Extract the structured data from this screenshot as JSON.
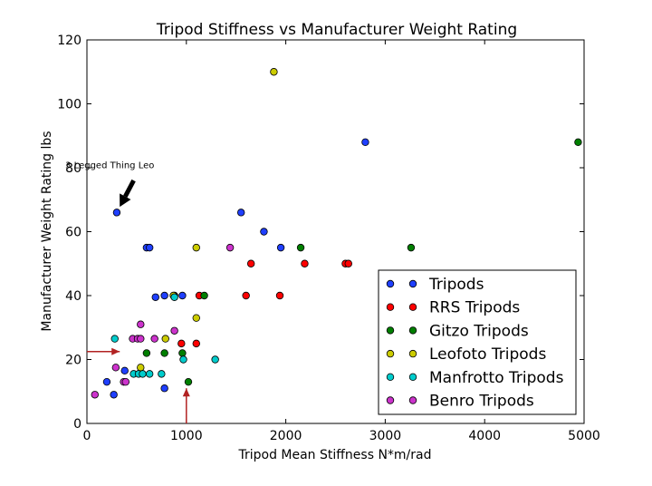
{
  "chart_data": {
    "type": "scatter",
    "title": "Tripod Stiffness vs Manufacturer Weight Rating",
    "xlabel": "Tripod Mean Stiffness N*m/rad",
    "ylabel": "Manufacturer Weight Rating lbs",
    "xlim": [
      0,
      5000
    ],
    "ylim": [
      0,
      120
    ],
    "xticks": [
      0,
      1000,
      2000,
      3000,
      4000,
      5000
    ],
    "yticks": [
      0,
      20,
      40,
      60,
      80,
      100,
      120
    ],
    "grid": false,
    "legend_position": "lower-right",
    "series": [
      {
        "name": "Tripods",
        "color": "#1f3fff",
        "points": [
          [
            300,
            66
          ],
          [
            600,
            55
          ],
          [
            630,
            55
          ],
          [
            690,
            39.5
          ],
          [
            780,
            40
          ],
          [
            880,
            40
          ],
          [
            960,
            40
          ],
          [
            1550,
            66
          ],
          [
            1780,
            60
          ],
          [
            1950,
            55
          ],
          [
            2800,
            88
          ],
          [
            200,
            13
          ],
          [
            270,
            9
          ],
          [
            380,
            16.5
          ],
          [
            780,
            11
          ]
        ]
      },
      {
        "name": "RRS Tripods",
        "color": "#ff0000",
        "points": [
          [
            1130,
            40
          ],
          [
            1600,
            40
          ],
          [
            1650,
            50
          ],
          [
            1940,
            40
          ],
          [
            2190,
            50
          ],
          [
            2600,
            50
          ],
          [
            2630,
            50
          ],
          [
            950,
            25
          ],
          [
            1100,
            25
          ]
        ]
      },
      {
        "name": "Gitzo Tripods",
        "color": "#007f00",
        "points": [
          [
            4940,
            88
          ],
          [
            3260,
            55
          ],
          [
            2150,
            55
          ],
          [
            1180,
            40
          ],
          [
            600,
            22
          ],
          [
            780,
            22
          ],
          [
            960,
            22
          ],
          [
            1020,
            13
          ]
        ]
      },
      {
        "name": "Leofoto Tripods",
        "color": "#cccc00",
        "points": [
          [
            1880,
            110
          ],
          [
            1100,
            55
          ],
          [
            1100,
            33
          ],
          [
            870,
            40
          ],
          [
            790,
            26.5
          ],
          [
            540,
            17.5
          ]
        ]
      },
      {
        "name": "Manfrotto Tripods",
        "color": "#00cccc",
        "points": [
          [
            280,
            26.5
          ],
          [
            470,
            15.5
          ],
          [
            520,
            15.5
          ],
          [
            560,
            15.5
          ],
          [
            630,
            15.5
          ],
          [
            750,
            15.5
          ],
          [
            880,
            39.5
          ],
          [
            970,
            20
          ],
          [
            1290,
            20
          ]
        ]
      },
      {
        "name": "Benro Tripods",
        "color": "#cc33cc",
        "points": [
          [
            80,
            9
          ],
          [
            290,
            17.5
          ],
          [
            370,
            13
          ],
          [
            390,
            13
          ],
          [
            460,
            26.5
          ],
          [
            510,
            26.5
          ],
          [
            540,
            26.5
          ],
          [
            540,
            31
          ],
          [
            680,
            26.5
          ],
          [
            880,
            29
          ],
          [
            1440,
            55
          ]
        ]
      }
    ],
    "annotations": [
      {
        "text": "3 Legged Thing Leo",
        "text_xy": [
          230,
          81
        ],
        "arrow_to": [
          300,
          66
        ],
        "arrow_from": [
          470,
          76
        ],
        "arrow_color": "#000000"
      }
    ],
    "markers": [
      {
        "type": "arrow",
        "color": "#b22222",
        "from": [
          0,
          22.5
        ],
        "to": [
          330,
          22.5
        ]
      },
      {
        "type": "arrow",
        "color": "#b22222",
        "from": [
          1000,
          0
        ],
        "to": [
          1000,
          11
        ]
      }
    ]
  }
}
